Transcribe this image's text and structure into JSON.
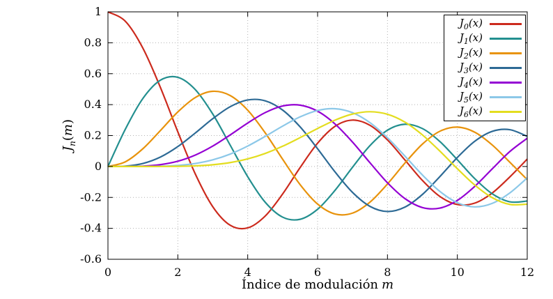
{
  "chart_data": {
    "type": "line",
    "title": "",
    "xlabel": "Índice de modulación",
    "xlabel_var": "m",
    "ylabel_parts": {
      "func": "J",
      "sub": "n",
      "open": "(",
      "var": "m",
      "close": ")"
    },
    "xlim": [
      0,
      12
    ],
    "ylim": [
      -0.6,
      1
    ],
    "xticks": {
      "values": [
        0,
        2,
        4,
        6,
        8,
        10,
        12
      ],
      "labels": [
        "0",
        "2",
        "4",
        "6",
        "8",
        "10",
        "12"
      ]
    },
    "yticks": {
      "values": [
        -0.6,
        -0.4,
        -0.2,
        0,
        0.2,
        0.4,
        0.6,
        0.8,
        1
      ],
      "labels": [
        "-0.6",
        "-0.4",
        "-0.2",
        "0",
        "0.2",
        "0.4",
        "0.6",
        "0.8",
        "1"
      ]
    },
    "grid": true,
    "grid_style": "dotted",
    "legend_position": "top-right",
    "legend_border": true,
    "x": [
      0,
      0.5,
      1,
      1.5,
      2,
      2.5,
      3,
      3.5,
      4,
      4.5,
      5,
      5.5,
      6,
      6.5,
      7,
      7.5,
      8,
      8.5,
      9,
      9.5,
      10,
      10.5,
      11,
      11.5,
      12
    ],
    "series": [
      {
        "name": "J0(x)",
        "order": 0,
        "color": "#cc2a1d",
        "values": [
          1.0,
          0.9385,
          0.7652,
          0.5118,
          0.2239,
          -0.0484,
          -0.2601,
          -0.3801,
          -0.3971,
          -0.3205,
          -0.1776,
          -0.0068,
          0.1506,
          0.2601,
          0.3001,
          0.2663,
          0.1717,
          0.0419,
          -0.0903,
          -0.1939,
          -0.2459,
          -0.2366,
          -0.1712,
          -0.0677,
          0.0477
        ]
      },
      {
        "name": "J1(x)",
        "order": 1,
        "color": "#238f8f",
        "values": [
          0,
          0.2423,
          0.4401,
          0.5579,
          0.5767,
          0.4971,
          0.3391,
          0.1374,
          -0.066,
          -0.2311,
          -0.3276,
          -0.3414,
          -0.2767,
          -0.1538,
          -0.0047,
          0.1352,
          0.2346,
          0.2731,
          0.2453,
          0.1613,
          0.0435,
          -0.0789,
          -0.1768,
          -0.2284,
          -0.2234
        ]
      },
      {
        "name": "J2(x)",
        "order": 2,
        "color": "#e8930c",
        "values": [
          0,
          0.0306,
          0.1149,
          0.2321,
          0.3528,
          0.4461,
          0.4861,
          0.4586,
          0.3641,
          0.2178,
          0.0466,
          -0.1173,
          -0.2429,
          -0.3074,
          -0.3014,
          -0.2303,
          -0.113,
          0.0223,
          0.1448,
          0.2279,
          0.2546,
          0.2216,
          0.139,
          0.0279,
          -0.0849
        ]
      },
      {
        "name": "J3(x)",
        "order": 3,
        "color": "#2d6a95",
        "values": [
          0,
          0.0026,
          0.0196,
          0.061,
          0.1289,
          0.2166,
          0.3091,
          0.3868,
          0.4302,
          0.4247,
          0.3648,
          0.2561,
          0.1148,
          -0.0354,
          -0.1676,
          -0.258,
          -0.2911,
          -0.2626,
          -0.1809,
          -0.0653,
          0.0584,
          0.1633,
          0.2273,
          0.2381,
          0.1951
        ]
      },
      {
        "name": "J4(x)",
        "order": 4,
        "color": "#9400d3",
        "values": [
          0,
          0.0002,
          0.0025,
          0.0118,
          0.034,
          0.0738,
          0.132,
          0.2044,
          0.2811,
          0.3484,
          0.3912,
          0.3967,
          0.3576,
          0.2748,
          0.1578,
          0.0238,
          -0.1054,
          -0.2077,
          -0.2655,
          -0.2691,
          -0.2196,
          -0.1283,
          -0.015,
          0.0963,
          0.1825
        ]
      },
      {
        "name": "J5(x)",
        "order": 5,
        "color": "#8cc8e8",
        "values": [
          0,
          0.0001,
          0.0002,
          0.0018,
          0.007,
          0.0195,
          0.043,
          0.0804,
          0.1321,
          0.1947,
          0.2611,
          0.3209,
          0.3621,
          0.3736,
          0.3479,
          0.2833,
          0.1858,
          0.0671,
          -0.055,
          -0.1613,
          -0.2341,
          -0.2611,
          -0.2383,
          -0.1711,
          -0.0735
        ]
      },
      {
        "name": "J6(x)",
        "order": 6,
        "color": "#e3dd1f",
        "values": [
          0,
          0.0,
          0.0,
          0.0002,
          0.0012,
          0.0042,
          0.0114,
          0.0254,
          0.0491,
          0.0843,
          0.131,
          0.1868,
          0.2458,
          0.2999,
          0.3392,
          0.3541,
          0.3376,
          0.2867,
          0.2043,
          0.0993,
          -0.0145,
          -0.1203,
          -0.2016,
          -0.2451,
          -0.2437
        ]
      }
    ],
    "colors": {
      "grid": "#b0b0b0",
      "axis": "#000000",
      "background": "#ffffff"
    }
  }
}
